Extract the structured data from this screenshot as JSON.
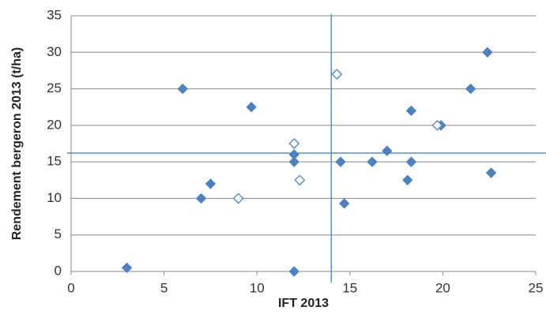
{
  "chart_data": {
    "type": "scatter",
    "x_label": "IFT 2013",
    "y_label": "Rendement bergeron 2013 (t/ha)",
    "xlim": [
      0,
      25
    ],
    "xticks": [
      0,
      5,
      10,
      15,
      20,
      25
    ],
    "ylim": [
      0,
      35
    ],
    "yticks": [
      0,
      5,
      10,
      15,
      20,
      25,
      30,
      35
    ],
    "grid": true,
    "vline": 14,
    "hline": 16.2,
    "ref_color": "#5b8cc4",
    "series": [
      {
        "color": "#4f81bd",
        "marker": "filled",
        "x": [
          3.0,
          6.0,
          7.0,
          7.5,
          9.7,
          12.0,
          12.0,
          12.0,
          14.5,
          14.7,
          16.2,
          17.0,
          18.1,
          18.3,
          18.3,
          19.9,
          21.5,
          22.4,
          22.6
        ],
        "values": [
          0.5,
          25,
          10,
          12,
          22.5,
          16,
          15,
          0,
          15,
          9.3,
          15,
          16.5,
          12.5,
          22,
          15,
          20,
          25,
          30,
          13.5
        ]
      },
      {
        "color": "#4f81bd",
        "marker": "hollow",
        "x": [
          9.0,
          12.0,
          12.3,
          14.3,
          19.7
        ],
        "values": [
          10,
          17.5,
          12.5,
          27,
          20
        ]
      }
    ]
  }
}
